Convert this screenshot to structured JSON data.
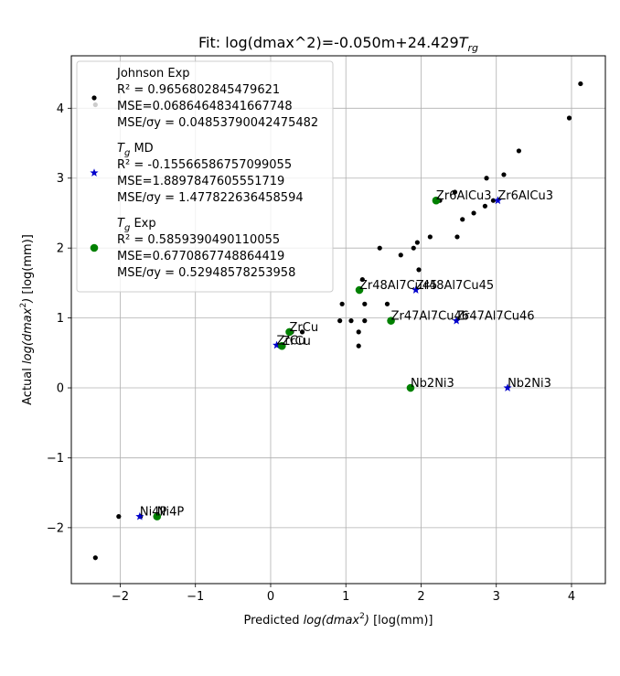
{
  "chart_data": {
    "type": "scatter",
    "title": "Fit: log(dmax^2)=-0.050m+24.429",
    "title_math": "T",
    "title_math_sub": "rg",
    "xlabel_prefix": "Predicted ",
    "xlabel_math": "log(dmax",
    "xlabel_sup": "2",
    "xlabel_math_end": ")",
    "xlabel_unit": " [log(mm)]",
    "ylabel_prefix": "Actual ",
    "ylabel_math": "log(dmax",
    "ylabel_sup": "2",
    "ylabel_math_end": ")",
    "ylabel_unit": " [log(mm)]",
    "xlim": [
      -2.65,
      4.45
    ],
    "ylim": [
      -2.8,
      4.75
    ],
    "xticks": [
      -2,
      -1,
      0,
      1,
      2,
      3,
      4
    ],
    "yticks": [
      -2,
      -1,
      0,
      1,
      2,
      3,
      4
    ],
    "grid": true,
    "legend_position": "upper-left",
    "series": [
      {
        "name": "Johnson Exp",
        "marker": "dot",
        "color": "#000000",
        "legend_lines": [
          "R² = 0.9656802845479621",
          "MSE=0.06864648341667748",
          "MSE/σy = 0.04853790042475482"
        ],
        "points": [
          [
            -2.33,
            4.05
          ],
          [
            -2.33,
            -2.43
          ],
          [
            -2.02,
            -1.84
          ],
          [
            -1.73,
            -1.84
          ],
          [
            0.28,
            0.8
          ],
          [
            0.42,
            0.8
          ],
          [
            0.12,
            0.6
          ],
          [
            0.92,
            0.96
          ],
          [
            0.95,
            1.2
          ],
          [
            1.07,
            0.96
          ],
          [
            1.17,
            0.6
          ],
          [
            1.17,
            0.8
          ],
          [
            1.22,
            1.55
          ],
          [
            1.25,
            1.2
          ],
          [
            1.25,
            0.96
          ],
          [
            1.45,
            2.0
          ],
          [
            1.55,
            1.2
          ],
          [
            1.73,
            1.9
          ],
          [
            1.9,
            2.0
          ],
          [
            1.95,
            2.08
          ],
          [
            1.97,
            1.69
          ],
          [
            2.12,
            2.16
          ],
          [
            2.25,
            2.68
          ],
          [
            2.45,
            2.8
          ],
          [
            2.48,
            2.16
          ],
          [
            2.55,
            2.41
          ],
          [
            2.7,
            2.5
          ],
          [
            2.85,
            2.6
          ],
          [
            2.87,
            3.0
          ],
          [
            2.96,
            2.68
          ],
          [
            3.1,
            3.05
          ],
          [
            3.3,
            3.39
          ],
          [
            3.97,
            3.86
          ],
          [
            4.12,
            4.35
          ]
        ]
      },
      {
        "name": "Tg MD",
        "marker": "star",
        "color": "#0000cc",
        "legend_lines": [
          "R² = -0.15566586757099055",
          "MSE=1.8897847605551719",
          "MSE/σy = 1.477822636458594"
        ],
        "points": [
          [
            -1.74,
            -1.84
          ],
          [
            0.08,
            0.61
          ],
          [
            1.93,
            1.4
          ],
          [
            2.47,
            0.96
          ],
          [
            3.15,
            0.0
          ],
          [
            3.02,
            2.68
          ]
        ],
        "labels": [
          "Ni4P",
          "ZrCu",
          "Zr48Al7Cu45",
          "Zr47Al7Cu46",
          "Nb2Ni3",
          "Zr6AlCu3"
        ]
      },
      {
        "name": "Tg Exp",
        "marker": "circle",
        "color": "#008000",
        "legend_lines": [
          "R² = 0.5859390490110055",
          "MSE=0.6770867748864419",
          "MSE/σy = 0.52948578253958"
        ],
        "points": [
          [
            -1.51,
            -1.84
          ],
          [
            0.25,
            0.8
          ],
          [
            0.15,
            0.6
          ],
          [
            1.18,
            1.4
          ],
          [
            1.6,
            0.96
          ],
          [
            1.86,
            0.0
          ],
          [
            2.2,
            2.68
          ]
        ],
        "labels": [
          "Ni4P",
          "ZrCu",
          "ZrCu",
          "Zr48Al7Cu45",
          "Zr47Al7Cu46",
          "Nb2Ni3",
          "Zr6AlCu3"
        ]
      }
    ]
  }
}
